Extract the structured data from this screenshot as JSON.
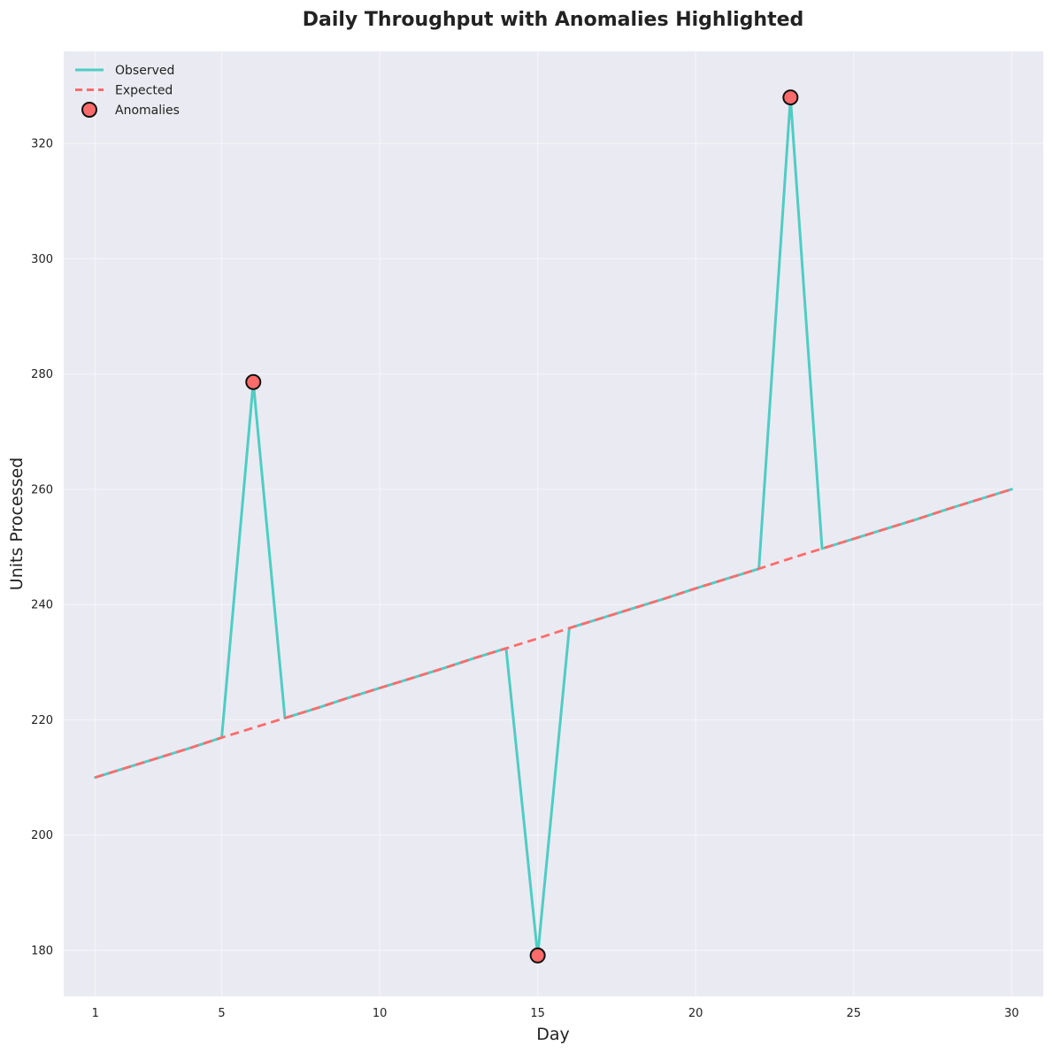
{
  "chart_data": {
    "type": "line",
    "title": "Daily Throughput with Anomalies Highlighted",
    "xlabel": "Day",
    "ylabel": "Units Processed",
    "xlim": [
      0,
      31
    ],
    "ylim": [
      172,
      336
    ],
    "x_ticks": [
      1,
      5,
      10,
      15,
      20,
      25,
      30
    ],
    "y_ticks": [
      180,
      200,
      220,
      240,
      260,
      280,
      300,
      320
    ],
    "grid": true,
    "legend_position": "top-left",
    "x": [
      1,
      2,
      3,
      4,
      5,
      6,
      7,
      8,
      9,
      10,
      11,
      12,
      13,
      14,
      15,
      16,
      17,
      18,
      19,
      20,
      21,
      22,
      23,
      24,
      25,
      26,
      27,
      28,
      29,
      30
    ],
    "series": [
      {
        "name": "Observed",
        "style": "solid",
        "color": "#4ECDC4",
        "values": [
          210.0,
          211.7,
          213.4,
          215.1,
          216.9,
          278.6,
          220.3,
          222.0,
          223.8,
          225.5,
          227.2,
          228.9,
          230.7,
          232.4,
          179.1,
          235.9,
          237.6,
          239.3,
          241.0,
          242.8,
          244.5,
          246.2,
          328.0,
          249.7,
          251.4,
          253.1,
          254.8,
          256.6,
          258.3,
          260.0
        ]
      },
      {
        "name": "Expected",
        "style": "dashed",
        "color": "#FF6B6B",
        "values": [
          210.0,
          211.7,
          213.4,
          215.1,
          216.9,
          218.6,
          220.3,
          222.0,
          223.8,
          225.5,
          227.2,
          228.9,
          230.7,
          232.4,
          234.1,
          235.9,
          237.6,
          239.3,
          241.0,
          242.8,
          244.5,
          246.2,
          248.0,
          249.7,
          251.4,
          253.1,
          254.8,
          256.6,
          258.3,
          260.0
        ]
      }
    ],
    "anomalies": {
      "name": "Anomalies",
      "color": "#FF6B6B",
      "points": [
        {
          "x": 6,
          "y": 278.6
        },
        {
          "x": 15,
          "y": 179.1
        },
        {
          "x": 23,
          "y": 328.0
        }
      ]
    },
    "colors": {
      "plot_background": "#EAEAF2",
      "grid": "#F4F4F8",
      "text": "#222222"
    }
  }
}
